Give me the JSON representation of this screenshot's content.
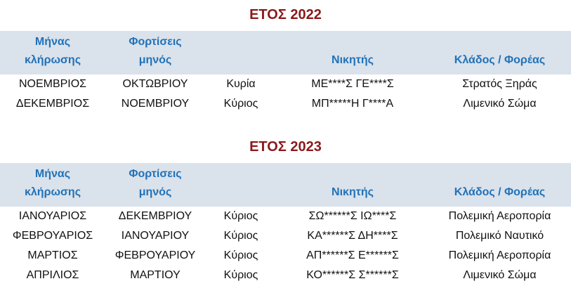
{
  "colors": {
    "title": "#8B1A1A",
    "header_text": "#2172B8",
    "header_bg": "#DAE2EC",
    "body_text": "#111111",
    "page_bg": "#FFFFFF"
  },
  "columns": [
    {
      "id": "draw-month",
      "lines": [
        "Μήνας",
        "κλήρωσης"
      ]
    },
    {
      "id": "charge-month",
      "lines": [
        "Φορτίσεις",
        "μηνός"
      ]
    },
    {
      "id": "salutation",
      "lines": []
    },
    {
      "id": "winner",
      "lines": [
        "Νικητής"
      ]
    },
    {
      "id": "branch",
      "lines": [
        "Κλάδος / Φορέας"
      ]
    }
  ],
  "sections": [
    {
      "title": "ΕΤΟΣ 2022",
      "rows": [
        [
          "ΝΟΕΜΒΡΙΟΣ",
          "ΟΚΤΩΒΡΙΟΥ",
          "Κυρία",
          "ΜΕ****Σ ΓΕ****Σ",
          "Στρατός Ξηράς"
        ],
        [
          "ΔΕΚΕΜΒΡΙΟΣ",
          "ΝΟΕΜΒΡΙΟΥ",
          "Κύριος",
          "ΜΠ*****Η Γ****Α",
          "Λιμενικό Σώμα"
        ]
      ]
    },
    {
      "title": "ΕΤΟΣ 2023",
      "rows": [
        [
          "ΙΑΝΟΥΑΡΙΟΣ",
          "ΔΕΚΕΜΒΡΙΟΥ",
          "Κύριος",
          "ΣΩ******Σ ΙΩ****Σ",
          "Πολεμική Αεροπορία"
        ],
        [
          "ΦΕΒΡΟΥΑΡΙΟΣ",
          "ΙΑΝΟΥΑΡΙΟΥ",
          "Κύριος",
          "ΚΑ******Σ ΔΗ****Σ",
          "Πολεμικό Ναυτικό"
        ],
        [
          "ΜΑΡΤΙΟΣ",
          "ΦΕΒΡΟΥΑΡΙΟΥ",
          "Κύριος",
          "ΑΠ******Σ Ε******Σ",
          "Πολεμική Αεροπορία"
        ],
        [
          "ΑΠΡΙΛΙΟΣ",
          "ΜΑΡΤΙΟΥ",
          "Κύριος",
          "ΚΟ******Σ Σ******Σ",
          "Λιμενικό Σώμα"
        ]
      ]
    }
  ]
}
